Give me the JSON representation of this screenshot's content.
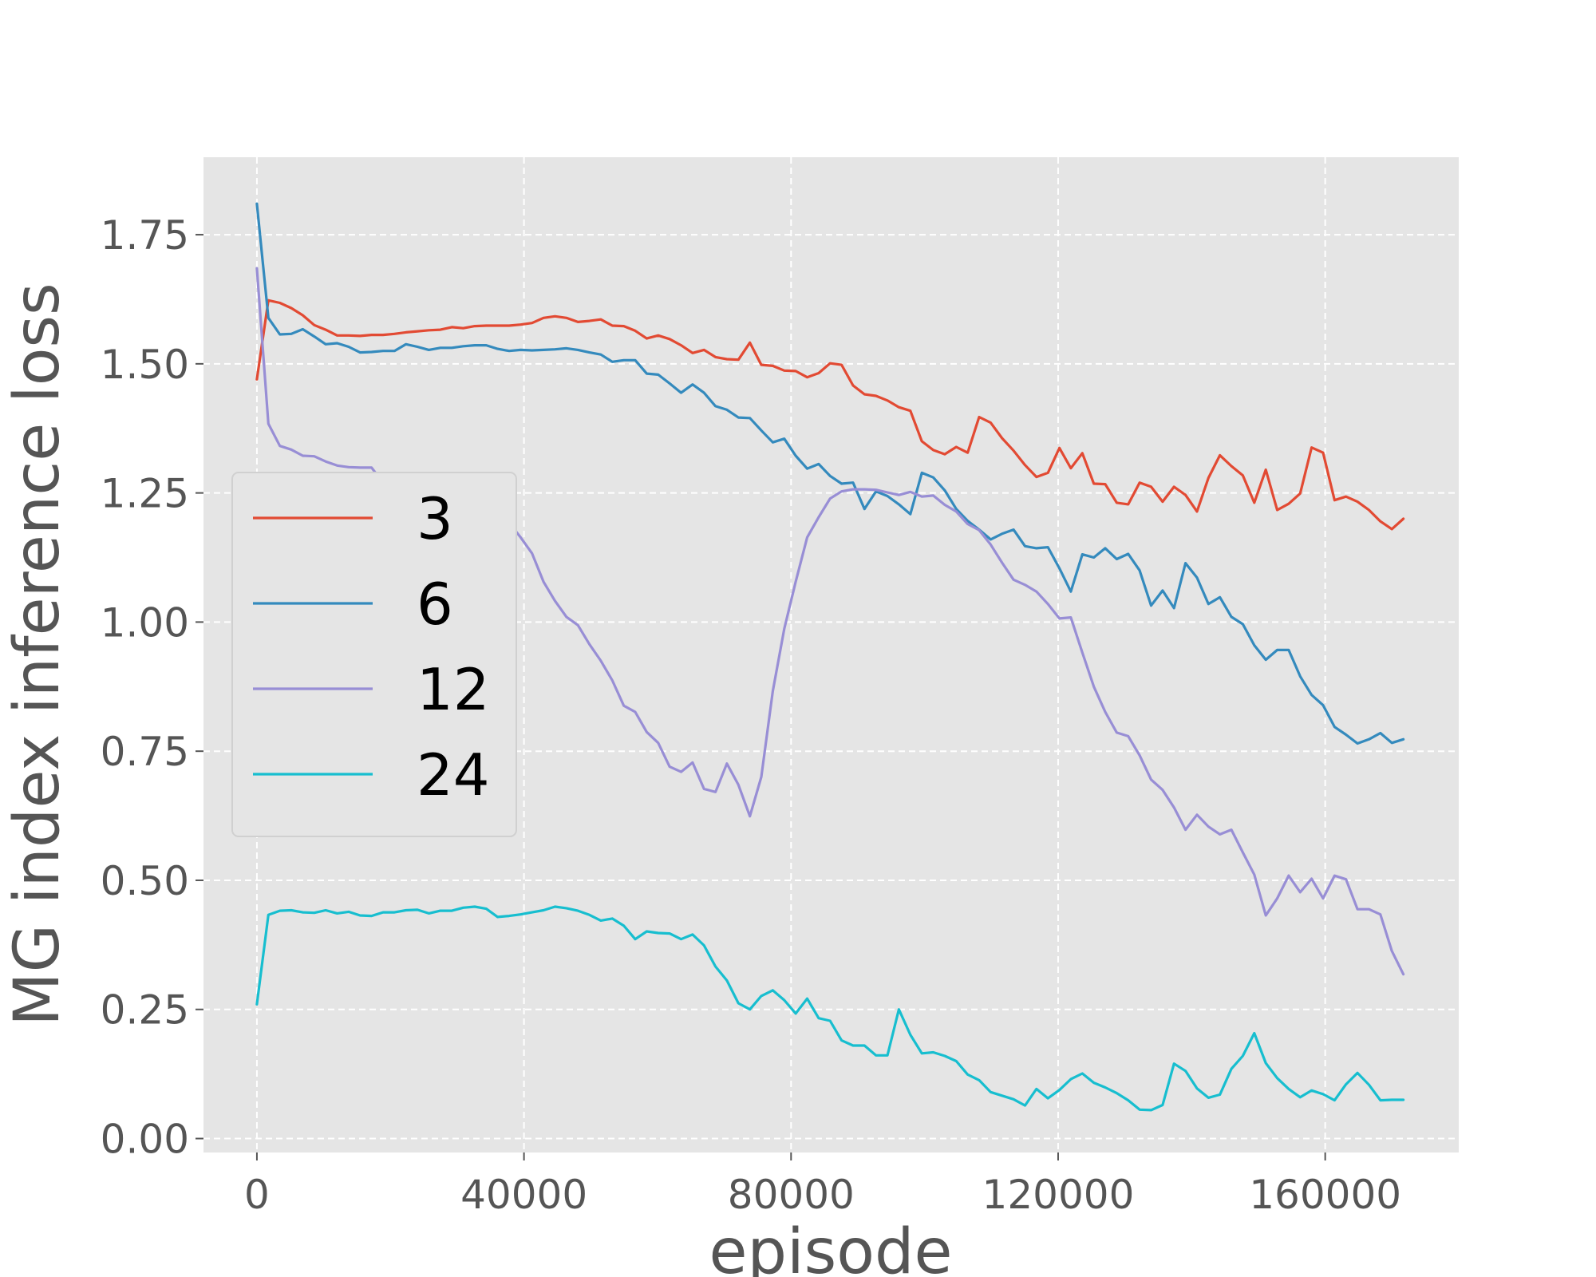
{
  "chart_data": {
    "type": "line",
    "title": "",
    "xlabel": "episode",
    "ylabel": "MG index inference loss",
    "xlim": [
      -8000,
      180000
    ],
    "ylim": [
      -0.027,
      1.9
    ],
    "xticks": [
      0,
      40000,
      80000,
      120000,
      160000
    ],
    "xtick_labels": [
      "0",
      "40000",
      "80000",
      "120000",
      "160000"
    ],
    "yticks": [
      0.0,
      0.25,
      0.5,
      0.75,
      1.0,
      1.25,
      1.5,
      1.75
    ],
    "ytick_labels": [
      "0.00",
      "0.25",
      "0.50",
      "0.75",
      "1.00",
      "1.25",
      "1.50",
      "1.75"
    ],
    "grid": true,
    "legend_position": "center-left",
    "x": [
      0,
      1717,
      3434,
      5151,
      6868,
      8585,
      10302,
      12019,
      13736,
      15453,
      17170,
      18887,
      20604,
      22321,
      24038,
      25755,
      27472,
      29189,
      30906,
      32623,
      34340,
      36057,
      37774,
      39491,
      41208,
      42925,
      44642,
      46359,
      48076,
      49793,
      51510,
      53227,
      54944,
      56661,
      58378,
      60095,
      61812,
      63529,
      65246,
      66963,
      68680,
      70397,
      72114,
      73831,
      75548,
      77265,
      78982,
      80699,
      82416,
      84133,
      85850,
      87567,
      89284,
      91001,
      92718,
      94435,
      96152,
      97869,
      99586,
      101303,
      103020,
      104737,
      106454,
      108171,
      109888,
      111605,
      113322,
      115039,
      116756,
      118473,
      120190,
      121907,
      123624,
      125341,
      127058,
      128775,
      130492,
      132209,
      133926,
      135643,
      137360,
      139077,
      140794,
      142511,
      144228,
      145945,
      147662,
      149379,
      151096,
      152813,
      154530,
      156247,
      157964,
      159681,
      161398,
      163115,
      164832,
      166549,
      168266,
      169983,
      171700
    ],
    "series": [
      {
        "name": "3",
        "color": "#E24A33",
        "values": [
          1.47,
          1.623,
          1.618,
          1.608,
          1.594,
          1.575,
          1.566,
          1.555,
          1.555,
          1.554,
          1.556,
          1.556,
          1.558,
          1.561,
          1.563,
          1.565,
          1.566,
          1.571,
          1.569,
          1.573,
          1.574,
          1.574,
          1.574,
          1.576,
          1.579,
          1.589,
          1.592,
          1.589,
          1.581,
          1.583,
          1.586,
          1.574,
          1.573,
          1.564,
          1.549,
          1.555,
          1.548,
          1.536,
          1.521,
          1.527,
          1.513,
          1.509,
          1.508,
          1.541,
          1.498,
          1.496,
          1.487,
          1.486,
          1.474,
          1.482,
          1.501,
          1.498,
          1.458,
          1.441,
          1.438,
          1.429,
          1.416,
          1.409,
          1.35,
          1.333,
          1.325,
          1.339,
          1.328,
          1.397,
          1.386,
          1.356,
          1.332,
          1.304,
          1.281,
          1.289,
          1.337,
          1.298,
          1.327,
          1.268,
          1.267,
          1.231,
          1.228,
          1.27,
          1.262,
          1.233,
          1.262,
          1.246,
          1.214,
          1.279,
          1.323,
          1.302,
          1.284,
          1.231,
          1.295,
          1.217,
          1.229,
          1.249,
          1.338,
          1.328,
          1.236,
          1.243,
          1.233,
          1.217,
          1.195,
          1.18,
          1.2
        ]
      },
      {
        "name": "6",
        "color": "#348ABD",
        "values": [
          1.81,
          1.589,
          1.557,
          1.558,
          1.567,
          1.553,
          1.538,
          1.54,
          1.533,
          1.522,
          1.523,
          1.525,
          1.525,
          1.538,
          1.533,
          1.527,
          1.531,
          1.531,
          1.534,
          1.536,
          1.536,
          1.529,
          1.525,
          1.527,
          1.526,
          1.527,
          1.528,
          1.53,
          1.527,
          1.522,
          1.518,
          1.504,
          1.507,
          1.507,
          1.481,
          1.479,
          1.462,
          1.444,
          1.46,
          1.444,
          1.418,
          1.411,
          1.396,
          1.395,
          1.371,
          1.348,
          1.355,
          1.322,
          1.297,
          1.306,
          1.283,
          1.268,
          1.27,
          1.219,
          1.253,
          1.244,
          1.228,
          1.209,
          1.289,
          1.28,
          1.255,
          1.219,
          1.196,
          1.179,
          1.16,
          1.171,
          1.179,
          1.147,
          1.143,
          1.145,
          1.104,
          1.059,
          1.131,
          1.125,
          1.143,
          1.122,
          1.132,
          1.1,
          1.032,
          1.061,
          1.027,
          1.114,
          1.086,
          1.035,
          1.048,
          1.01,
          0.996,
          0.955,
          0.927,
          0.946,
          0.946,
          0.895,
          0.859,
          0.839,
          0.797,
          0.782,
          0.765,
          0.773,
          0.785,
          0.766,
          0.773
        ]
      },
      {
        "name": "12",
        "color": "#988ED5",
        "values": [
          1.685,
          1.384,
          1.341,
          1.334,
          1.322,
          1.321,
          1.311,
          1.303,
          1.3,
          1.299,
          1.299,
          1.27,
          1.271,
          1.278,
          1.265,
          1.274,
          1.264,
          1.256,
          1.253,
          1.243,
          1.23,
          1.219,
          1.192,
          1.164,
          1.133,
          1.078,
          1.041,
          1.01,
          0.994,
          0.957,
          0.925,
          0.887,
          0.838,
          0.826,
          0.787,
          0.766,
          0.72,
          0.71,
          0.728,
          0.677,
          0.671,
          0.726,
          0.685,
          0.624,
          0.7,
          0.866,
          0.987,
          1.078,
          1.164,
          1.203,
          1.239,
          1.253,
          1.257,
          1.257,
          1.256,
          1.251,
          1.246,
          1.252,
          1.243,
          1.245,
          1.227,
          1.214,
          1.19,
          1.178,
          1.15,
          1.115,
          1.082,
          1.072,
          1.059,
          1.035,
          1.007,
          1.009,
          0.941,
          0.875,
          0.826,
          0.786,
          0.779,
          0.742,
          0.695,
          0.675,
          0.641,
          0.598,
          0.627,
          0.604,
          0.589,
          0.598,
          0.554,
          0.511,
          0.432,
          0.465,
          0.509,
          0.477,
          0.503,
          0.465,
          0.509,
          0.502,
          0.444,
          0.444,
          0.434,
          0.363,
          0.318
        ]
      },
      {
        "name": "24",
        "color": "#17BECF",
        "values": [
          0.26,
          0.433,
          0.441,
          0.442,
          0.438,
          0.437,
          0.442,
          0.436,
          0.439,
          0.432,
          0.431,
          0.438,
          0.438,
          0.442,
          0.443,
          0.436,
          0.441,
          0.441,
          0.447,
          0.449,
          0.445,
          0.429,
          0.431,
          0.434,
          0.438,
          0.442,
          0.449,
          0.446,
          0.441,
          0.433,
          0.422,
          0.426,
          0.412,
          0.386,
          0.401,
          0.398,
          0.397,
          0.386,
          0.395,
          0.374,
          0.333,
          0.306,
          0.262,
          0.25,
          0.276,
          0.287,
          0.268,
          0.242,
          0.271,
          0.233,
          0.228,
          0.19,
          0.18,
          0.18,
          0.161,
          0.161,
          0.25,
          0.201,
          0.165,
          0.167,
          0.16,
          0.15,
          0.124,
          0.113,
          0.09,
          0.083,
          0.076,
          0.064,
          0.096,
          0.078,
          0.094,
          0.115,
          0.126,
          0.108,
          0.099,
          0.088,
          0.074,
          0.056,
          0.055,
          0.065,
          0.145,
          0.131,
          0.097,
          0.079,
          0.085,
          0.135,
          0.16,
          0.204,
          0.146,
          0.117,
          0.096,
          0.08,
          0.093,
          0.086,
          0.074,
          0.105,
          0.127,
          0.104,
          0.074,
          0.075,
          0.075
        ]
      }
    ]
  }
}
